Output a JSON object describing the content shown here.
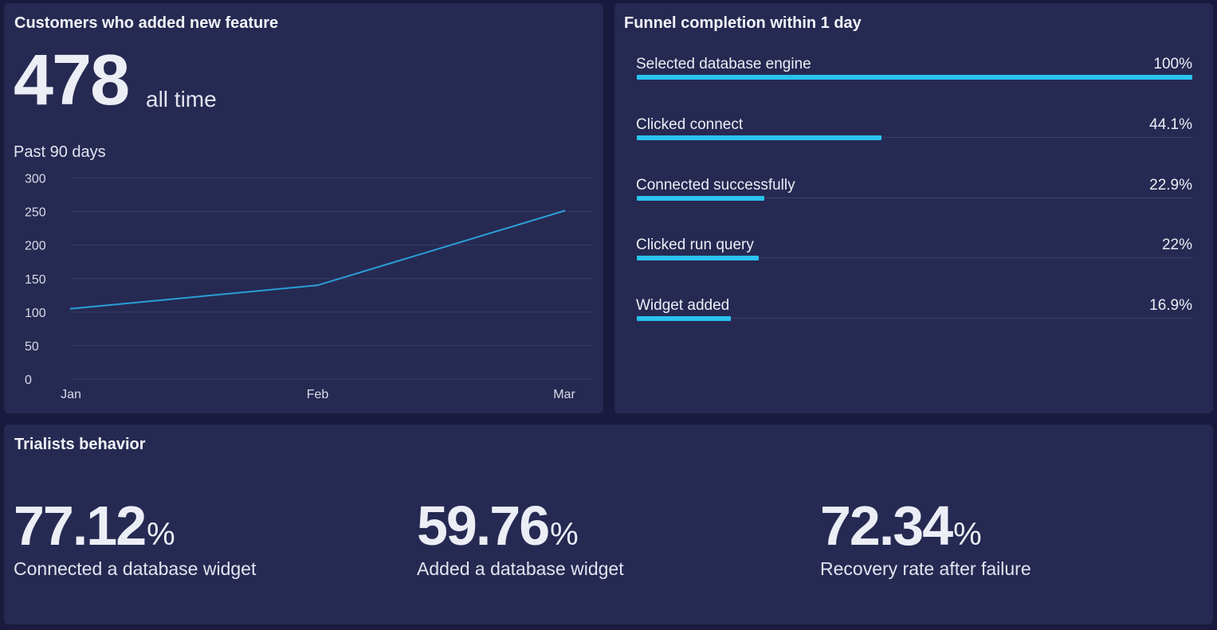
{
  "customers_panel": {
    "title": "Customers who added new feature",
    "total": "478",
    "total_suffix": "all time",
    "subtitle": "Past 90 days"
  },
  "chart_data": {
    "type": "line",
    "title": "",
    "xlabel": "",
    "ylabel": "",
    "categories": [
      "Jan",
      "Feb",
      "Mar"
    ],
    "y_ticks": [
      0,
      50,
      100,
      150,
      200,
      250,
      300
    ],
    "ylim": [
      0,
      300
    ],
    "grid": true,
    "series": [
      {
        "values": [
          105,
          140,
          251
        ],
        "color": "#2a9fd8"
      }
    ]
  },
  "funnel_panel": {
    "title": "Funnel completion within 1 day",
    "bar_color": "#2ac3f0",
    "steps": [
      {
        "label": "Selected database engine",
        "percent_text": "100%",
        "fraction": 1.0
      },
      {
        "label": "Clicked connect",
        "percent_text": "44.1%",
        "fraction": 0.441
      },
      {
        "label": "Connected successfully",
        "percent_text": "22.9%",
        "fraction": 0.229
      },
      {
        "label": "Clicked run query",
        "percent_text": "22%",
        "fraction": 0.22
      },
      {
        "label": "Widget added",
        "percent_text": "16.9%",
        "fraction": 0.169
      }
    ]
  },
  "trialists_panel": {
    "title": "Trialists behavior",
    "stats": [
      {
        "value": "77.12",
        "unit": "%",
        "label": "Connected a database widget"
      },
      {
        "value": "59.76",
        "unit": "%",
        "label": "Added a database widget"
      },
      {
        "value": "72.34",
        "unit": "%",
        "label": "Recovery rate after failure"
      }
    ]
  }
}
